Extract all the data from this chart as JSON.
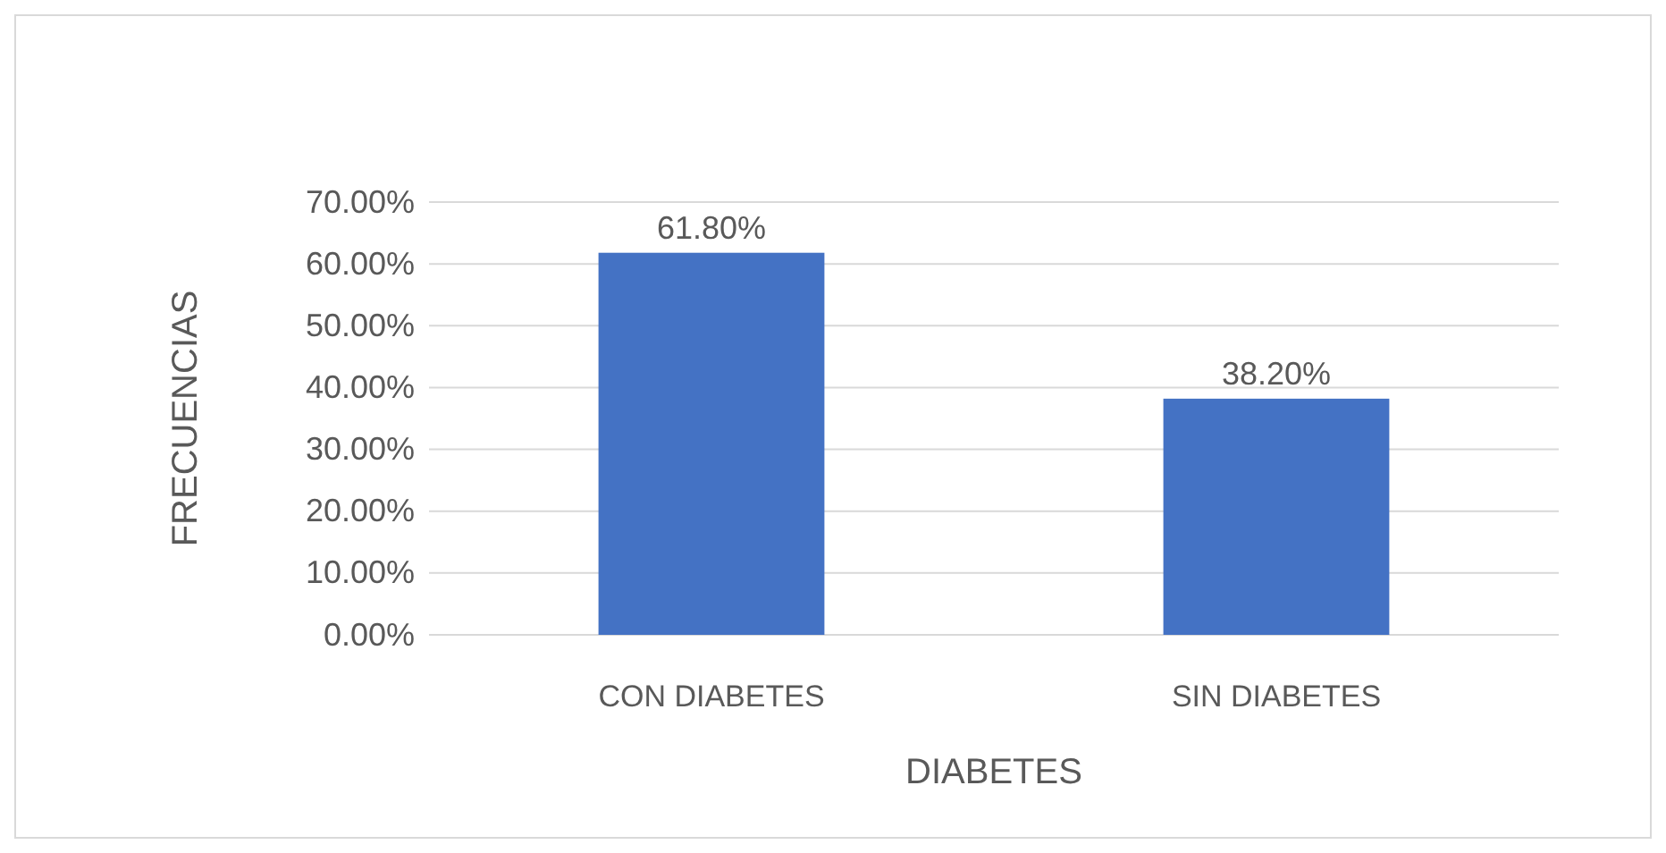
{
  "chart_data": {
    "type": "bar",
    "xlabel": "DIABETES",
    "ylabel": "FRECUENCIAS",
    "categories": [
      "CON DIABETES",
      "SIN DIABETES"
    ],
    "values": [
      61.8,
      38.2
    ],
    "color": "#4472c4",
    "value_labels": [
      "61.80%",
      "38.20%"
    ],
    "ylim": [
      0,
      70
    ],
    "yticks": [
      {
        "value": 0,
        "label": "0.00%"
      },
      {
        "value": 10,
        "label": "10.00%"
      },
      {
        "value": 20,
        "label": "20.00%"
      },
      {
        "value": 30,
        "label": "30.00%"
      },
      {
        "value": 40,
        "label": "40.00%"
      },
      {
        "value": 50,
        "label": "50.00%"
      },
      {
        "value": 60,
        "label": "60.00%"
      },
      {
        "value": 70,
        "label": "70.00%"
      }
    ],
    "grid": true
  }
}
